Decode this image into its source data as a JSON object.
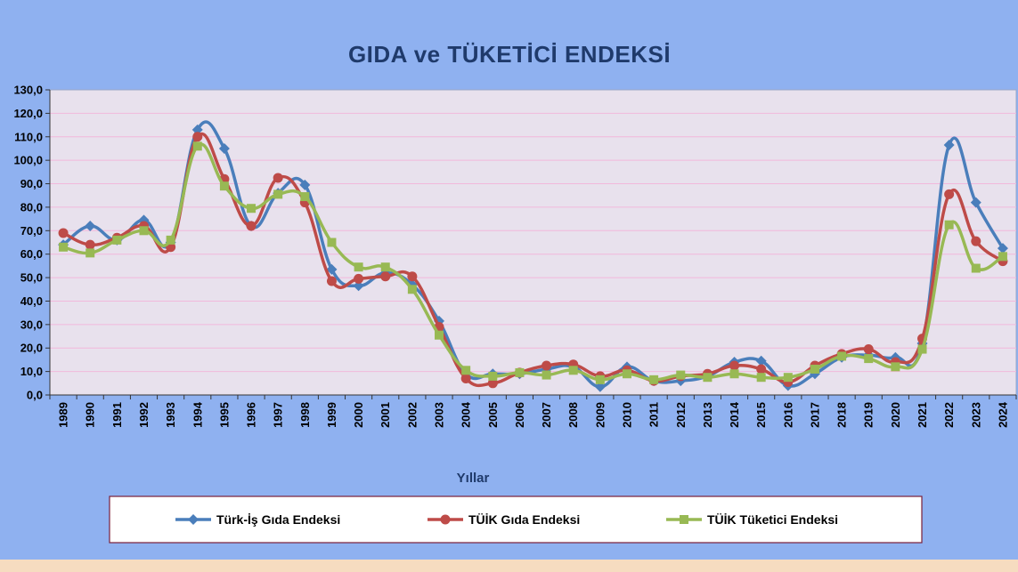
{
  "chart_data": {
    "type": "line",
    "title": "GIDA ve TÜKETİCİ ENDEKSİ",
    "xlabel": "Yıllar",
    "ylabel": "",
    "ylim": [
      0,
      130
    ],
    "ytick_step": 10,
    "ytick_format": "comma1",
    "grid": true,
    "legend_position": "bottom",
    "x": [
      "1989",
      "1990",
      "1991",
      "1992",
      "1993",
      "1994",
      "1995",
      "1996",
      "1997",
      "1998",
      "1999",
      "2000",
      "2001",
      "2002",
      "2003",
      "2004",
      "2005",
      "2006",
      "2007",
      "2008",
      "2009",
      "2010",
      "2011",
      "2012",
      "2013",
      "2014",
      "2015",
      "2016",
      "2017",
      "2018",
      "2019",
      "2020",
      "2021",
      "2022",
      "2023",
      "2024"
    ],
    "series": [
      {
        "name": "Türk-İş Gıda Endeksi",
        "color": "#4a7ebb",
        "marker": "diamond",
        "values": [
          64.0,
          72.0,
          66.0,
          74.5,
          65.0,
          113.0,
          105.0,
          72.0,
          86.0,
          89.5,
          53.5,
          46.5,
          52.0,
          47.0,
          31.5,
          9.0,
          9.0,
          9.0,
          11.0,
          12.0,
          3.5,
          12.0,
          6.0,
          6.0,
          8.0,
          14.0,
          14.5,
          4.0,
          9.0,
          16.0,
          17.0,
          16.0,
          22.0,
          106.5,
          82.0,
          62.5
        ]
      },
      {
        "name": "TÜİK Gıda Endeksi",
        "color": "#be4b48",
        "marker": "circle",
        "values": [
          69.0,
          64.0,
          67.0,
          72.0,
          63.0,
          110.0,
          92.0,
          72.0,
          92.5,
          82.0,
          48.5,
          49.5,
          50.5,
          50.5,
          29.0,
          7.0,
          5.0,
          9.5,
          12.5,
          13.0,
          8.0,
          10.5,
          6.0,
          8.0,
          9.0,
          12.5,
          11.0,
          5.5,
          12.5,
          17.5,
          19.5,
          14.0,
          24.0,
          85.5,
          65.5,
          57.0
        ]
      },
      {
        "name": "TÜİK Tüketici Endeksi",
        "color": "#98b954",
        "marker": "square",
        "values": [
          63.0,
          60.5,
          66.0,
          70.0,
          66.0,
          106.0,
          89.0,
          79.5,
          85.5,
          84.5,
          65.0,
          54.5,
          54.5,
          45.0,
          25.5,
          10.5,
          8.0,
          9.5,
          8.5,
          10.5,
          6.5,
          9.0,
          6.5,
          8.5,
          7.5,
          9.0,
          7.5,
          7.5,
          11.0,
          16.5,
          15.5,
          12.0,
          19.5,
          72.5,
          54.0,
          59.0
        ]
      }
    ]
  }
}
